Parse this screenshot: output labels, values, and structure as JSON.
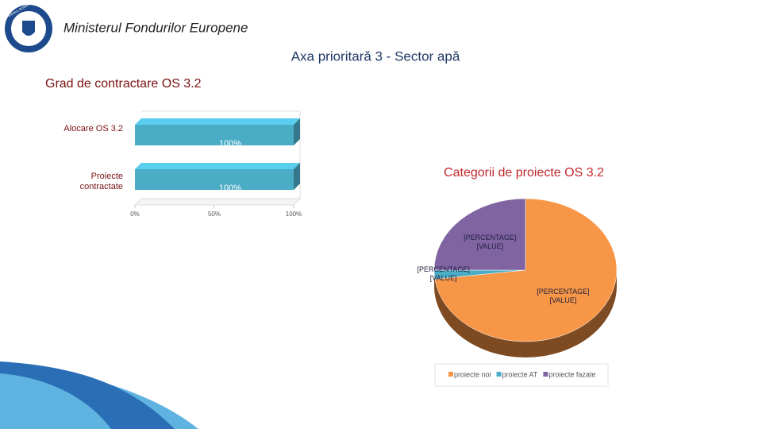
{
  "header": {
    "logo_text": "GUVERNUL ROMÂNIEI",
    "ministry": "Ministerul Fondurilor Europene",
    "heading": "Axa prioritară 3 - Sector apă"
  },
  "chart_data": [
    {
      "type": "bar",
      "orientation": "horizontal",
      "title": "Grad de contractare OS 3.2",
      "categories": [
        "Alocare OS 3.2",
        "Proiecte contractate"
      ],
      "values": [
        100,
        100
      ],
      "value_labels": [
        "100%",
        "100%"
      ],
      "color": "#4bacc6",
      "xlim": [
        0,
        100
      ],
      "xticks": [
        {
          "value": 0,
          "label": "0%"
        },
        {
          "value": 50,
          "label": "50%"
        },
        {
          "value": 100,
          "label": "100%"
        }
      ]
    },
    {
      "type": "pie",
      "title": "Categorii de proiecte OS 3.2",
      "categories": [
        "proiecte noi",
        "proiecte AT",
        "proiecte fazate"
      ],
      "values": [
        73,
        2,
        25
      ],
      "value_labels": [
        "[PERCENTAGE]\n[VALUE]",
        "[PERCENTAGE]\n[VALUE]",
        "[PERCENTAGE]\n[VALUE]"
      ],
      "colors": [
        "#f79646",
        "#4bacc6",
        "#8064a2"
      ],
      "legend": "bottom"
    }
  ]
}
